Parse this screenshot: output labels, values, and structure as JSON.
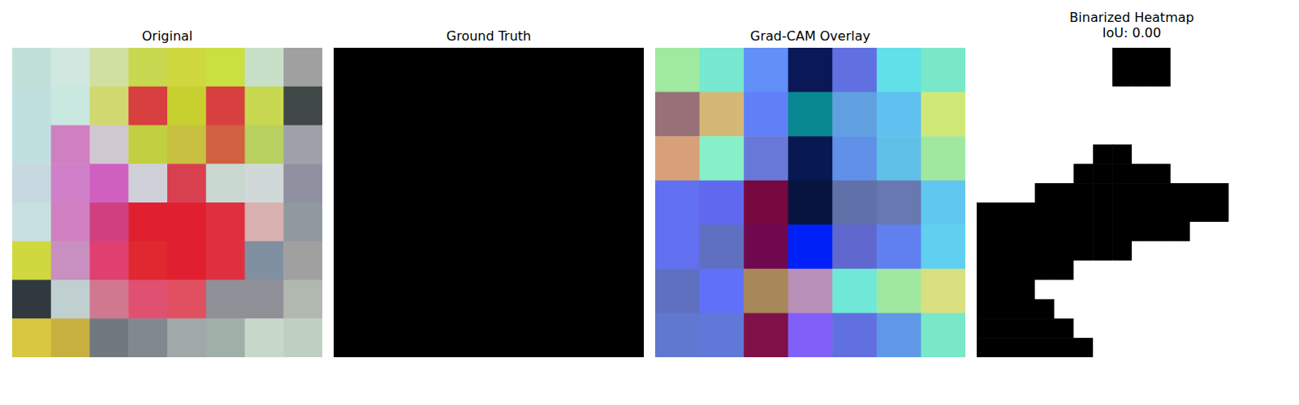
{
  "chart_data": [
    {
      "type": "image",
      "title": "Original",
      "tick_labels": false,
      "cells": [
        [
          "#c0e0d8",
          "#d0e8e0",
          "#d0e0a0",
          "#c8d850",
          "#d0d840",
          "#c8e040",
          "#c8e0c8",
          "#a0a0a0"
        ],
        [
          "#c0e0e0",
          "#c8e8e0",
          "#d0d870",
          "#d84040",
          "#c8d030",
          "#d84040",
          "#c8d850",
          "#404848"
        ],
        [
          "#c0e0e0",
          "#d080c0",
          "#d0c8d0",
          "#c0d040",
          "#c8c040",
          "#d06040",
          "#b8d060",
          "#a0a0a8"
        ],
        [
          "#c8d8e0",
          "#d080c8",
          "#d060c0",
          "#d0d0d8",
          "#d84050",
          "#c8d8d0",
          "#d0d8d8",
          "#9090a0"
        ],
        [
          "#c8e0e0",
          "#d080c0",
          "#d04080",
          "#e02030",
          "#e02030",
          "#e03040",
          "#d8b0b0",
          "#9098a0"
        ],
        [
          "#d0d840",
          "#c890c0",
          "#e04070",
          "#e02830",
          "#e02030",
          "#e03040",
          "#8090a0",
          "#a0a0a0"
        ],
        [
          "#303840",
          "#c0d0d0",
          "#d07890",
          "#e05070",
          "#e05060",
          "#909098",
          "#909098",
          "#b0b8b0"
        ],
        [
          "#d8c840",
          "#c8b040",
          "#707880",
          "#808890",
          "#a0a8a8",
          "#a0b0a8",
          "#c8d8c8",
          "#c0d0c0"
        ]
      ]
    },
    {
      "type": "image",
      "title": "Ground Truth",
      "tick_labels": false,
      "cells": [
        [
          "#000000"
        ]
      ]
    },
    {
      "type": "image",
      "title": "Grad-CAM Overlay",
      "tick_labels": false,
      "cells": [
        [
          "#a0eaa0",
          "#78e8d0",
          "#6090f8",
          "#0a1858",
          "#6070e0",
          "#60e0e8",
          "#78e8c8"
        ],
        [
          "#987078",
          "#d4b878",
          "#6080f8",
          "#088890",
          "#60a0e0",
          "#60c0f0",
          "#d0e878"
        ],
        [
          "#d8a078",
          "#88f0c8",
          "#6878d8",
          "#081850",
          "#6090e8",
          "#60c0e8",
          "#a0e8a0"
        ],
        [
          "#6070f0",
          "#6068f0",
          "#780840",
          "#081440",
          "#6070a8",
          "#6878b0",
          "#60c8f0"
        ],
        [
          "#6070f0",
          "#6070c0",
          "#700850",
          "#0020f8",
          "#6068d0",
          "#6080f0",
          "#60d0f0"
        ],
        [
          "#6070c0",
          "#6070f8",
          "#a88858",
          "#b890b8",
          "#70e8d8",
          "#a0e8a0",
          "#d8e080"
        ],
        [
          "#6078d0",
          "#6078d8",
          "#801048",
          "#8060f8",
          "#6070e0",
          "#6098e8",
          "#78e8c8"
        ]
      ]
    },
    {
      "type": "image",
      "title": "Binarized Heatmap",
      "subtitle": "IoU: 0.00",
      "tick_labels": false,
      "cells": [
        [
          "#ffffff",
          "#ffffff",
          "#ffffff",
          "#ffffff",
          "#ffffff",
          "#ffffff",
          "#ffffff",
          "#000000",
          "#000000",
          "#000000",
          "#ffffff",
          "#ffffff",
          "#ffffff",
          "#ffffff",
          "#ffffff",
          "#ffffff"
        ],
        [
          "#ffffff",
          "#ffffff",
          "#ffffff",
          "#ffffff",
          "#ffffff",
          "#ffffff",
          "#ffffff",
          "#000000",
          "#000000",
          "#000000",
          "#ffffff",
          "#ffffff",
          "#ffffff",
          "#ffffff",
          "#ffffff",
          "#ffffff"
        ],
        [
          "#ffffff",
          "#ffffff",
          "#ffffff",
          "#ffffff",
          "#ffffff",
          "#ffffff",
          "#ffffff",
          "#ffffff",
          "#ffffff",
          "#ffffff",
          "#ffffff",
          "#ffffff",
          "#ffffff",
          "#ffffff",
          "#ffffff",
          "#ffffff"
        ],
        [
          "#ffffff",
          "#ffffff",
          "#ffffff",
          "#ffffff",
          "#ffffff",
          "#ffffff",
          "#ffffff",
          "#ffffff",
          "#ffffff",
          "#ffffff",
          "#ffffff",
          "#ffffff",
          "#ffffff",
          "#ffffff",
          "#ffffff",
          "#ffffff"
        ],
        [
          "#ffffff",
          "#ffffff",
          "#ffffff",
          "#ffffff",
          "#ffffff",
          "#ffffff",
          "#ffffff",
          "#ffffff",
          "#ffffff",
          "#ffffff",
          "#ffffff",
          "#ffffff",
          "#ffffff",
          "#ffffff",
          "#ffffff",
          "#ffffff"
        ],
        [
          "#ffffff",
          "#ffffff",
          "#ffffff",
          "#ffffff",
          "#ffffff",
          "#ffffff",
          "#000000",
          "#000000",
          "#ffffff",
          "#ffffff",
          "#ffffff",
          "#ffffff",
          "#ffffff",
          "#ffffff",
          "#ffffff",
          "#ffffff"
        ],
        [
          "#ffffff",
          "#ffffff",
          "#ffffff",
          "#ffffff",
          "#ffffff",
          "#000000",
          "#000000",
          "#000000",
          "#000000",
          "#000000",
          "#ffffff",
          "#ffffff",
          "#ffffff",
          "#ffffff",
          "#ffffff",
          "#ffffff"
        ],
        [
          "#ffffff",
          "#ffffff",
          "#ffffff",
          "#000000",
          "#000000",
          "#000000",
          "#000000",
          "#000000",
          "#000000",
          "#000000",
          "#000000",
          "#000000",
          "#000000",
          "#ffffff",
          "#ffffff",
          "#ffffff"
        ],
        [
          "#000000",
          "#000000",
          "#000000",
          "#000000",
          "#000000",
          "#000000",
          "#000000",
          "#000000",
          "#000000",
          "#000000",
          "#000000",
          "#000000",
          "#000000",
          "#ffffff",
          "#ffffff",
          "#ffffff"
        ],
        [
          "#000000",
          "#000000",
          "#000000",
          "#000000",
          "#000000",
          "#000000",
          "#000000",
          "#000000",
          "#000000",
          "#000000",
          "#000000",
          "#ffffff",
          "#ffffff",
          "#ffffff",
          "#ffffff",
          "#ffffff"
        ],
        [
          "#000000",
          "#000000",
          "#000000",
          "#000000",
          "#000000",
          "#000000",
          "#000000",
          "#000000",
          "#ffffff",
          "#ffffff",
          "#ffffff",
          "#ffffff",
          "#ffffff",
          "#ffffff",
          "#ffffff",
          "#ffffff"
        ],
        [
          "#000000",
          "#000000",
          "#000000",
          "#000000",
          "#000000",
          "#ffffff",
          "#ffffff",
          "#ffffff",
          "#ffffff",
          "#ffffff",
          "#ffffff",
          "#ffffff",
          "#ffffff",
          "#ffffff",
          "#ffffff",
          "#ffffff"
        ],
        [
          "#000000",
          "#000000",
          "#000000",
          "#ffffff",
          "#ffffff",
          "#ffffff",
          "#ffffff",
          "#ffffff",
          "#ffffff",
          "#ffffff",
          "#ffffff",
          "#ffffff",
          "#ffffff",
          "#ffffff",
          "#ffffff",
          "#ffffff"
        ],
        [
          "#000000",
          "#000000",
          "#000000",
          "#000000",
          "#ffffff",
          "#ffffff",
          "#ffffff",
          "#ffffff",
          "#ffffff",
          "#ffffff",
          "#ffffff",
          "#ffffff",
          "#ffffff",
          "#ffffff",
          "#ffffff",
          "#ffffff"
        ],
        [
          "#000000",
          "#000000",
          "#000000",
          "#000000",
          "#000000",
          "#ffffff",
          "#ffffff",
          "#ffffff",
          "#ffffff",
          "#ffffff",
          "#ffffff",
          "#ffffff",
          "#ffffff",
          "#ffffff",
          "#ffffff",
          "#ffffff"
        ],
        [
          "#000000",
          "#000000",
          "#000000",
          "#000000",
          "#000000",
          "#000000",
          "#ffffff",
          "#ffffff",
          "#ffffff",
          "#ffffff",
          "#ffffff",
          "#ffffff",
          "#ffffff",
          "#ffffff",
          "#ffffff",
          "#ffffff"
        ]
      ]
    }
  ]
}
